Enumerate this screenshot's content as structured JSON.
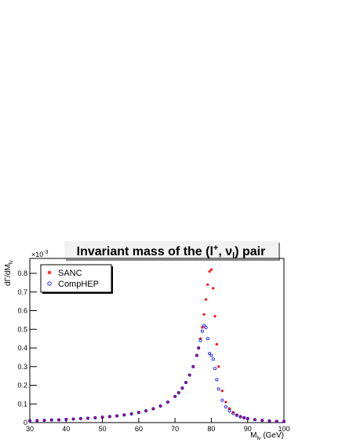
{
  "chart_data": {
    "type": "scatter",
    "title": {
      "parts": [
        "Invariant mass of the (l",
        "+",
        ", ν",
        "l",
        ") pair"
      ]
    },
    "x_label": {
      "main": "M",
      "sub": "lν",
      "unit": " (GeV)"
    },
    "y_label": {
      "main": "dΓ/dM",
      "sub": "lν"
    },
    "y_exponent": {
      "base": "×10",
      "power": "-3"
    },
    "x": [
      30,
      32,
      34,
      36,
      38,
      40,
      42,
      44,
      46,
      48,
      50,
      52,
      54,
      56,
      58,
      60,
      62,
      64,
      66,
      68,
      70,
      71,
      72,
      73,
      74,
      75,
      76,
      76.5,
      77,
      77.5,
      78,
      78.5,
      79,
      79.5,
      80,
      80.5,
      81,
      81.5,
      82,
      83,
      84,
      85,
      86,
      87,
      88,
      89,
      90,
      92,
      94,
      96,
      98,
      100
    ],
    "series": [
      {
        "name": "SANC",
        "color": "#ff0000",
        "marker": "star",
        "values": [
          0.01,
          0.011,
          0.012,
          0.014,
          0.015,
          0.017,
          0.019,
          0.021,
          0.023,
          0.026,
          0.029,
          0.032,
          0.036,
          0.041,
          0.047,
          0.054,
          0.063,
          0.074,
          0.089,
          0.11,
          0.14,
          0.16,
          0.185,
          0.215,
          0.255,
          0.3,
          0.36,
          0.4,
          0.45,
          0.51,
          0.58,
          0.66,
          0.74,
          0.81,
          0.82,
          0.72,
          0.57,
          0.42,
          0.3,
          0.17,
          0.11,
          0.075,
          0.055,
          0.042,
          0.033,
          0.027,
          0.022,
          0.016,
          0.012,
          0.009,
          0.007,
          0.006
        ]
      },
      {
        "name": "CompHEP",
        "color": "#0000ff",
        "marker": "circle",
        "values": [
          0.01,
          0.011,
          0.012,
          0.014,
          0.015,
          0.017,
          0.019,
          0.021,
          0.023,
          0.026,
          0.029,
          0.032,
          0.036,
          0.041,
          0.047,
          0.054,
          0.063,
          0.074,
          0.089,
          0.11,
          0.14,
          0.16,
          0.185,
          0.215,
          0.255,
          0.3,
          0.36,
          0.4,
          0.44,
          0.49,
          0.52,
          0.51,
          0.45,
          0.37,
          0.36,
          0.34,
          0.29,
          0.23,
          0.18,
          0.12,
          0.085,
          0.063,
          0.049,
          0.039,
          0.031,
          0.026,
          0.021,
          0.016,
          0.012,
          0.009,
          0.007,
          0.006
        ]
      }
    ],
    "xlim": [
      30,
      100
    ],
    "xticks": [
      30,
      40,
      50,
      60,
      70,
      80,
      90,
      100
    ],
    "ylim": [
      0,
      0.88
    ],
    "yticks": [
      0,
      0.1,
      0.2,
      0.3,
      0.4,
      0.5,
      0.6,
      0.7,
      0.8
    ],
    "legend": "top-left"
  }
}
